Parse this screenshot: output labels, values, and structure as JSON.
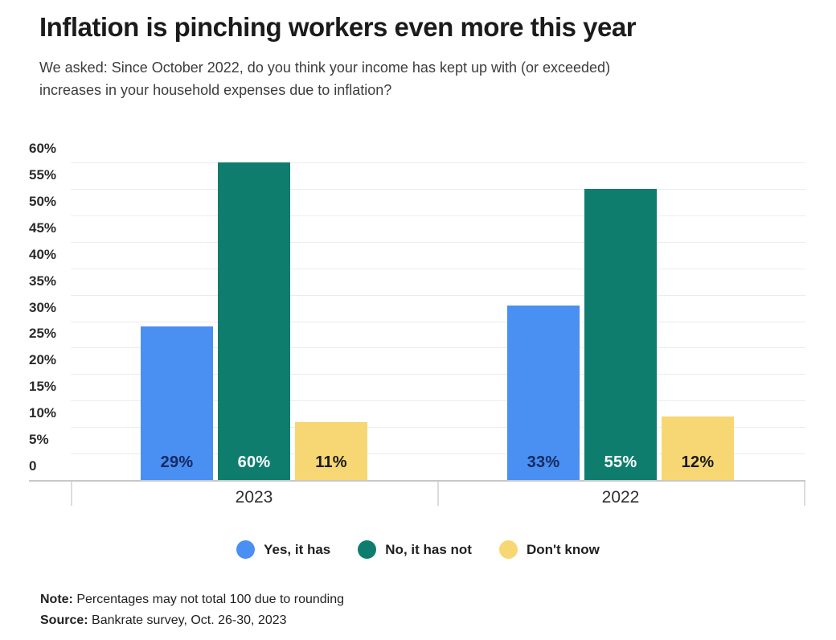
{
  "header": {
    "title": "Inflation is pinching workers even more this year",
    "subtitle_line1": "We asked: Since October 2022, do you think your income has kept up with (or exceeded)",
    "subtitle_line2": "increases in your household expenses due to inflation?"
  },
  "chart_data": {
    "type": "bar",
    "categories": [
      "2023",
      "2022"
    ],
    "series": [
      {
        "name": "Yes, it has",
        "color": "#4a8ff2",
        "label_color": "#172a60",
        "values": [
          29,
          33
        ]
      },
      {
        "name": "No, it has not",
        "color": "#0e7d6e",
        "label_color": "#ffffff",
        "values": [
          60,
          55
        ]
      },
      {
        "name": "Don't know",
        "color": "#f6d773",
        "label_color": "#1a1a1a",
        "values": [
          11,
          12
        ]
      }
    ],
    "value_labels": {
      "2023": [
        "29%",
        "60%",
        "11%"
      ],
      "2022": [
        "33%",
        "55%",
        "12%"
      ]
    },
    "y_ticks": [
      "60%",
      "55%",
      "50%",
      "45%",
      "40%",
      "35%",
      "30%",
      "25%",
      "20%",
      "15%",
      "10%",
      "5%",
      "0"
    ],
    "ylim": [
      0,
      60
    ],
    "grid": true,
    "legend_position": "bottom"
  },
  "footer": {
    "note_label": "Note:",
    "note_text": " Percentages may not total 100 due to rounding",
    "source_label": "Source:",
    "source_text": " Bankrate survey, Oct. 26-30, 2023"
  }
}
